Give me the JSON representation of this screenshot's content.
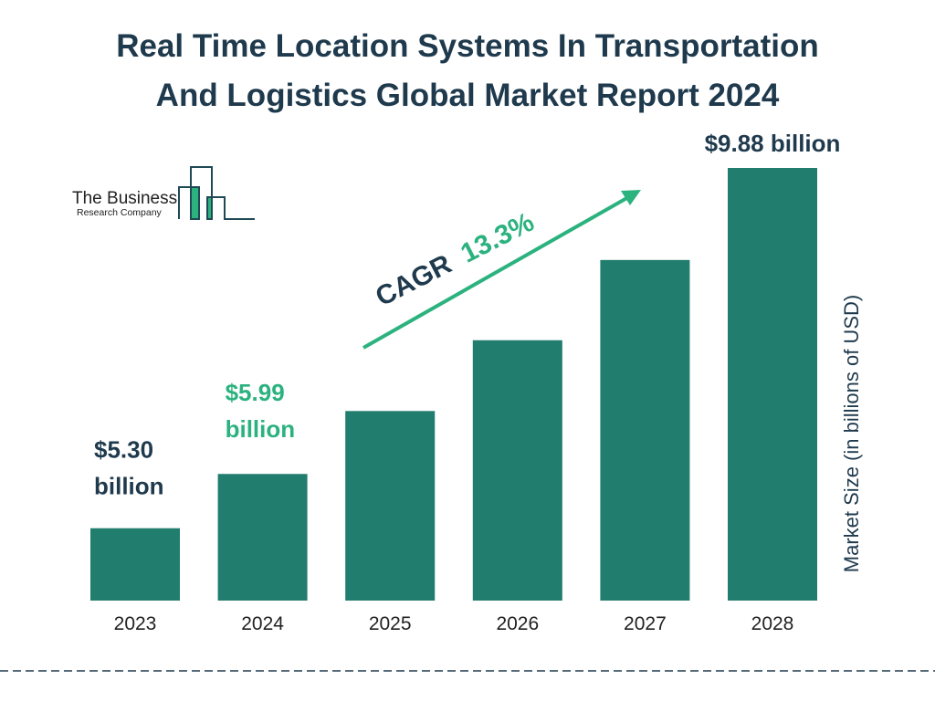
{
  "title_line1": "Real Time Location Systems In Transportation",
  "title_line2": "And Logistics Global Market Report 2024",
  "logo": {
    "line1": "The Business",
    "line2": "Research Company"
  },
  "colors": {
    "bar": "#217d6d",
    "dark_text": "#1f3a4d",
    "accent_green": "#2bb27f"
  },
  "chart_data": {
    "type": "bar",
    "title": "Real Time Location Systems In Transportation And Logistics Global Market Report 2024",
    "categories": [
      "2023",
      "2024",
      "2025",
      "2026",
      "2027",
      "2028"
    ],
    "values": [
      5.3,
      5.99,
      6.79,
      7.69,
      8.71,
      9.88
    ],
    "ylabel": "Market Size (in billions of USD)",
    "xlabel": "",
    "grid": false,
    "data_labels": [
      {
        "index": 0,
        "line1": "$5.30",
        "line2": "billion",
        "color": "#1f3a4d"
      },
      {
        "index": 1,
        "line1": "$5.99",
        "line2": "billion",
        "color": "#2bb27f"
      },
      {
        "index": 5,
        "line1": "$9.88 billion",
        "line2": "",
        "color": "#1f3a4d"
      }
    ],
    "annotation": {
      "label": "CAGR",
      "value": "13.3%"
    }
  }
}
